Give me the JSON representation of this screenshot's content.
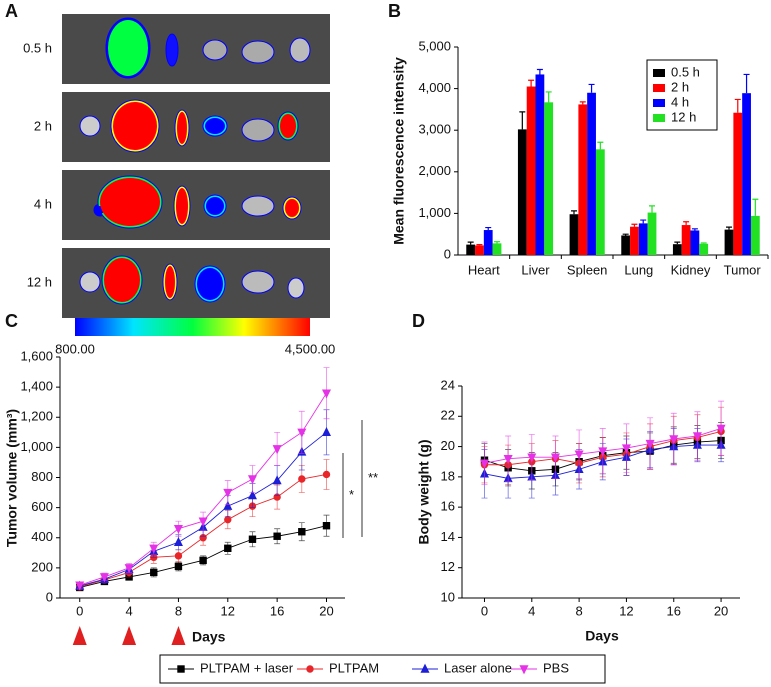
{
  "image_panel": {
    "panel_label": "A",
    "rows": [
      "0.5 h",
      "2 h",
      "4 h",
      "12 h"
    ],
    "colorbar": {
      "min": {
        "value": 800,
        "label": "800.00"
      },
      "max": {
        "value": 4500,
        "label": "4,500.00"
      }
    }
  },
  "chart_data": [
    {
      "type": "bar",
      "panel_label": "B",
      "y_label": "Mean fluorescence intensity",
      "categories": [
        "Heart",
        "Liver",
        "Spleen",
        "Lung",
        "Kidney",
        "Tumor"
      ],
      "series": [
        {
          "name": "0.5 h",
          "color": "#000000",
          "values": [
            250,
            3020,
            980,
            470,
            260,
            610
          ],
          "errors": [
            60,
            420,
            80,
            30,
            50,
            60
          ]
        },
        {
          "name": "2 h",
          "color": "#ff0000",
          "values": [
            230,
            4050,
            3620,
            680,
            720,
            3420
          ],
          "errors": [
            20,
            150,
            60,
            60,
            80,
            320
          ]
        },
        {
          "name": "4 h",
          "color": "#0000ff",
          "values": [
            600,
            4340,
            3900,
            760,
            590,
            3890
          ],
          "errors": [
            60,
            120,
            200,
            80,
            40,
            450
          ]
        },
        {
          "name": "12 h",
          "color": "#22e022",
          "values": [
            280,
            3670,
            2540,
            1020,
            270,
            940
          ],
          "errors": [
            40,
            250,
            170,
            160,
            20,
            400
          ]
        }
      ],
      "ylim": [
        0,
        5000
      ],
      "yticks": [
        0,
        {
          "value": 1000,
          "label": "1,000"
        },
        {
          "value": 2000,
          "label": "2,000"
        },
        {
          "value": 3000,
          "label": "3,000"
        },
        {
          "value": 4000,
          "label": "4,000"
        },
        {
          "value": 5000,
          "label": "5,000"
        }
      ],
      "legend": "upper right"
    },
    {
      "type": "line",
      "panel_label": "C",
      "y_label": "Tumor volume (mm³)",
      "x_label": "Days",
      "x": [
        0,
        2,
        4,
        6,
        8,
        10,
        12,
        14,
        16,
        18,
        20
      ],
      "series": [
        {
          "name": "PLTPAM + laser",
          "color": "#000000",
          "marker": "square",
          "values": [
            70,
            110,
            140,
            170,
            210,
            250,
            330,
            390,
            410,
            440,
            480
          ],
          "errors": [
            20,
            20,
            20,
            30,
            30,
            30,
            40,
            50,
            50,
            60,
            70
          ]
        },
        {
          "name": "PLTPAM",
          "color": "#e8262a",
          "marker": "circle",
          "values": [
            75,
            120,
            170,
            270,
            280,
            400,
            520,
            610,
            670,
            790,
            820
          ],
          "errors": [
            20,
            20,
            30,
            40,
            40,
            50,
            60,
            70,
            80,
            90,
            100
          ]
        },
        {
          "name": "Laser alone",
          "color": "#1d1fd6",
          "marker": "triangle-up",
          "values": [
            80,
            125,
            190,
            310,
            370,
            470,
            610,
            680,
            780,
            970,
            1100
          ],
          "errors": [
            20,
            25,
            30,
            40,
            50,
            60,
            70,
            80,
            100,
            120,
            150
          ]
        },
        {
          "name": "PBS",
          "color": "#e632e6",
          "marker": "triangle-down",
          "values": [
            85,
            140,
            200,
            330,
            460,
            510,
            700,
            790,
            990,
            1100,
            1360
          ],
          "errors": [
            20,
            25,
            30,
            40,
            50,
            60,
            80,
            90,
            110,
            140,
            170
          ]
        }
      ],
      "xlim": [
        -1.6,
        21.5
      ],
      "xticks": [
        0,
        4,
        8,
        12,
        16,
        20
      ],
      "ylim": [
        0,
        1600
      ],
      "yticks": [
        0,
        200,
        400,
        600,
        800,
        {
          "value": 1000,
          "label": "1,000"
        },
        {
          "value": 1200,
          "label": "1,200"
        },
        {
          "value": 1400,
          "label": "1,400"
        },
        {
          "value": 1600,
          "label": "1,600"
        }
      ],
      "treatment_days": [
        0,
        4,
        8
      ],
      "annotations": [
        "*",
        "**"
      ]
    },
    {
      "type": "line",
      "panel_label": "D",
      "y_label": "Body weight (g)",
      "x_label": "Days",
      "x": [
        0,
        2,
        4,
        6,
        8,
        10,
        12,
        14,
        16,
        18,
        20
      ],
      "series": [
        {
          "color": "#000000",
          "marker": "square",
          "values": [
            19.1,
            18.6,
            18.4,
            18.5,
            19.0,
            19.4,
            19.6,
            19.7,
            20.1,
            20.3,
            20.4
          ],
          "errors": [
            1.1,
            1.2,
            1.2,
            1.1,
            1.2,
            1.2,
            1.1,
            1.2,
            1.2,
            1.1,
            1.2
          ]
        },
        {
          "color": "#e8262a",
          "marker": "circle",
          "values": [
            18.8,
            18.8,
            19.0,
            19.2,
            18.9,
            19.3,
            19.5,
            20.0,
            20.4,
            20.6,
            21.0
          ],
          "errors": [
            1.2,
            1.3,
            1.2,
            1.2,
            1.3,
            1.3,
            1.4,
            1.5,
            1.6,
            1.5,
            1.6
          ]
        },
        {
          "color": "#1d1fd6",
          "marker": "triangle-up",
          "values": [
            18.2,
            17.9,
            18.0,
            18.1,
            18.5,
            19.0,
            19.3,
            19.8,
            20.0,
            20.1,
            20.1
          ],
          "errors": [
            1.6,
            1.3,
            1.4,
            1.3,
            1.3,
            1.2,
            1.2,
            1.2,
            1.2,
            1.1,
            1.1
          ]
        },
        {
          "color": "#e632e6",
          "marker": "triangle-down",
          "values": [
            18.9,
            19.2,
            19.3,
            19.3,
            19.5,
            19.7,
            19.9,
            20.2,
            20.5,
            20.7,
            21.2
          ],
          "errors": [
            1.4,
            1.5,
            1.5,
            1.4,
            1.6,
            1.5,
            1.6,
            1.7,
            1.7,
            1.6,
            1.8
          ]
        }
      ],
      "xlim": [
        -1.9,
        21.6
      ],
      "xticks": [
        0,
        4,
        8,
        12,
        16,
        20
      ],
      "ylim": [
        10,
        24
      ],
      "yticks": [
        10,
        12,
        14,
        16,
        18,
        20,
        22,
        24
      ]
    }
  ]
}
